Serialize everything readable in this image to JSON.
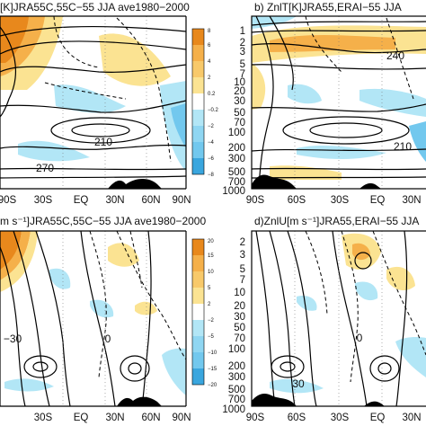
{
  "colors": {
    "warm_dark": "#e8881c",
    "warm_mid": "#f5b04a",
    "warm_light": "#fbe392",
    "cool_light": "#b2e6f6",
    "cool_mid": "#72c8ee",
    "cool_dark": "#3aa6de",
    "topography": "#000000"
  },
  "chart_data": [
    {
      "type": "heatmap",
      "panel": "top-left",
      "title": "[K]JRA55C,55C−55 JJA ave1980−2000",
      "x_ticks": [
        "90S",
        "30S",
        "EQ",
        "30N",
        "60N",
        "90N"
      ],
      "xlim": [
        "90S",
        "90N"
      ],
      "colorbar_ticks": [
        "8",
        "6",
        "4",
        "2",
        "0.2",
        "−0.2",
        "−2",
        "−4",
        "−6",
        "−8"
      ],
      "contour_labels": [
        "210",
        "270"
      ],
      "grid": true
    },
    {
      "type": "heatmap",
      "panel": "top-right",
      "title": "b) ZnlT[K]JRA55,ERAI−55 JJA",
      "x_ticks": [
        "90S",
        "60S",
        "30S",
        "EQ",
        "30N"
      ],
      "y_ticks": [
        "1",
        "2",
        "3",
        "5",
        "7",
        "10",
        "20",
        "30",
        "50",
        "70",
        "100",
        "200",
        "300",
        "500",
        "700",
        "1000"
      ],
      "ylim": [
        1000,
        1
      ],
      "contour_labels": [
        "240",
        "210"
      ],
      "grid": true
    },
    {
      "type": "heatmap",
      "panel": "bottom-left",
      "title": "m s⁻¹]JRA55C,55C−55 JJA ave1980−2000",
      "x_ticks": [
        "30S",
        "EQ",
        "30N",
        "60N",
        "90N"
      ],
      "xlim": [
        "90S",
        "90N"
      ],
      "colorbar_ticks": [
        "20",
        "15",
        "10",
        "5",
        "2",
        "−2",
        "−5",
        "−10",
        "−15",
        "−20"
      ],
      "contour_labels": [
        "0",
        "−30"
      ],
      "grid": true
    },
    {
      "type": "heatmap",
      "panel": "bottom-right",
      "title": "d)ZnlU[m s⁻¹]JRA55,ERAI−55 JJA",
      "x_ticks": [
        "90S",
        "60S",
        "30S",
        "EQ",
        "30N"
      ],
      "y_ticks": [
        "2",
        "3",
        "5",
        "7",
        "10",
        "20",
        "30",
        "50",
        "70",
        "100",
        "200",
        "300",
        "500",
        "700",
        "1000"
      ],
      "ylim": [
        1000,
        1
      ],
      "contour_labels": [
        "30",
        "0"
      ],
      "grid": true
    }
  ]
}
